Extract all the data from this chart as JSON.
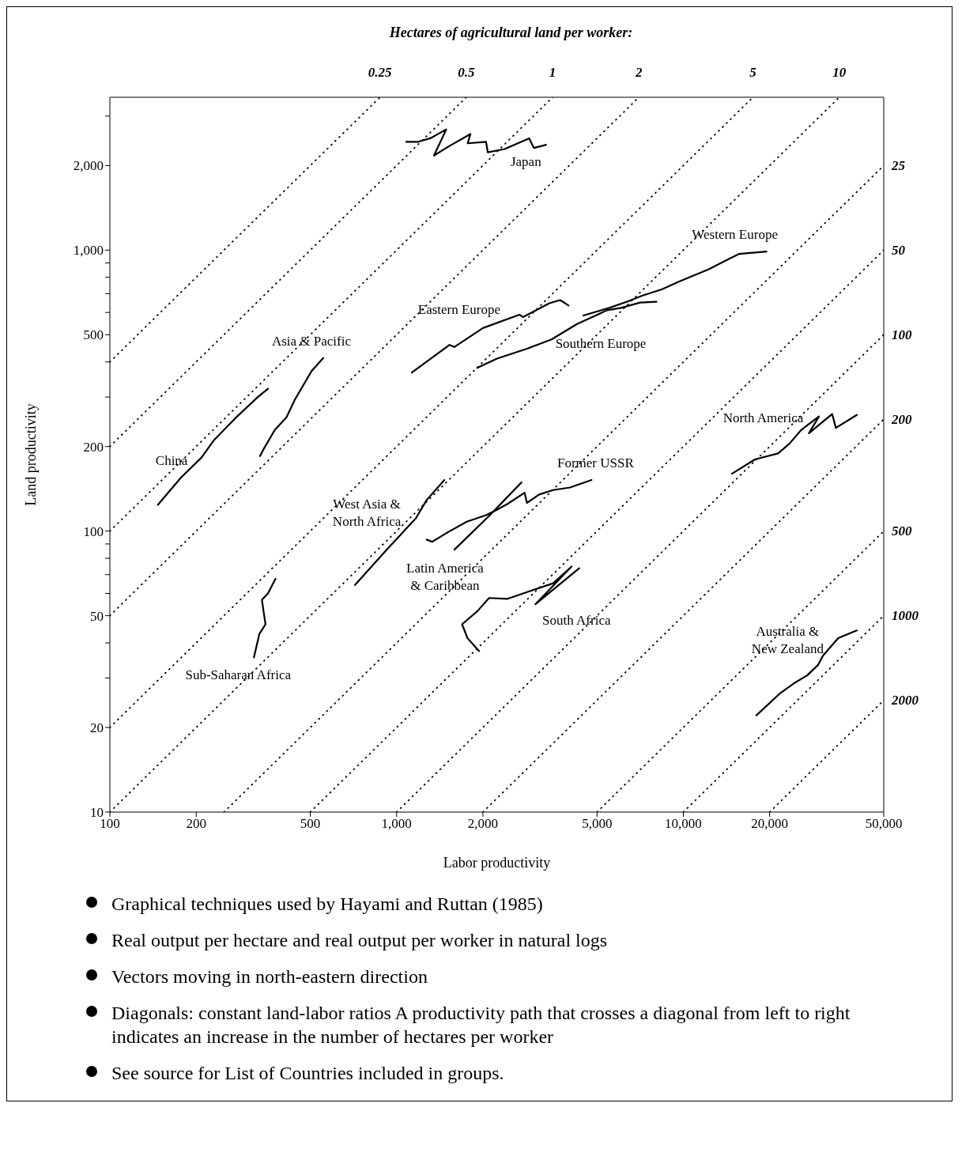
{
  "chart_data": {
    "type": "line",
    "subtitle": "Hectares of agricultural land per worker:",
    "xlabel": "Labor productivity",
    "ylabel": "Land productivity",
    "log": "xy",
    "grid": false,
    "legend": false,
    "marker": "none",
    "line_style": "solid",
    "xlim": [
      100,
      50000
    ],
    "ylim": [
      10,
      3500
    ],
    "xticks": [
      100,
      200,
      500,
      {
        "value": 1000,
        "label": "1,000"
      },
      {
        "value": 2000,
        "label": "2,000"
      },
      {
        "value": 5000,
        "label": "5,000"
      },
      {
        "value": 10000,
        "label": "10,000"
      },
      {
        "value": 20000,
        "label": "20,000"
      },
      {
        "value": 50000,
        "label": "50,000"
      }
    ],
    "yticks": [
      10,
      20,
      50,
      100,
      200,
      500,
      {
        "value": 1000,
        "label": "1,000"
      },
      {
        "value": 2000,
        "label": "2,000"
      },
      {
        "value": 30,
        "label": null
      },
      {
        "value": 40,
        "label": null
      },
      {
        "value": 60,
        "label": null
      },
      {
        "value": 70,
        "label": null
      },
      {
        "value": 80,
        "label": null
      },
      {
        "value": 90,
        "label": null
      },
      {
        "value": 300,
        "label": null
      },
      {
        "value": 400,
        "label": null
      },
      {
        "value": 600,
        "label": null
      },
      {
        "value": 700,
        "label": null
      },
      {
        "value": 800,
        "label": null
      },
      {
        "value": 900,
        "label": null
      },
      {
        "value": 3000,
        "label": null
      }
    ],
    "series": [
      {
        "name": "Japan",
        "color": "#000000",
        "x": [
          1080,
          1190,
          1310,
          1490,
          1350,
          1520,
          1810,
          1770,
          2050,
          2080,
          2380,
          2900,
          3010,
          3320
        ],
        "values": [
          2430,
          2430,
          2500,
          2690,
          2170,
          2340,
          2590,
          2400,
          2430,
          2230,
          2290,
          2500,
          2310,
          2370
        ]
      },
      {
        "name": "Eastern Europe",
        "color": "#000000",
        "x": [
          1130,
          1530,
          1590,
          2000,
          2680,
          2760,
          3410,
          3720,
          3980
        ],
        "values": [
          367,
          460,
          452,
          528,
          589,
          578,
          647,
          664,
          635
        ]
      },
      {
        "name": "Southern Europe",
        "color": "#000000",
        "x": [
          1910,
          2240,
          2850,
          3470,
          4260,
          5420,
          6060,
          7070,
          8060
        ],
        "values": [
          381,
          411,
          446,
          481,
          546,
          611,
          623,
          651,
          655
        ]
      },
      {
        "name": "Western Europe",
        "color": "#000000",
        "x": [
          4480,
          5520,
          6450,
          7210,
          8410,
          9640,
          12270,
          13970,
          15620,
          19500
        ],
        "values": [
          585,
          623,
          659,
          689,
          725,
          772,
          855,
          915,
          969,
          988
        ]
      },
      {
        "name": "China",
        "color": "#000000",
        "x": [
          147,
          177,
          209,
          231,
          278,
          328,
          356
        ],
        "values": [
          124,
          155,
          183,
          211,
          256,
          300,
          321
        ]
      },
      {
        "name": "Asia & Pacific",
        "color": "#000000",
        "x": [
          334,
          343,
          376,
          413,
          442,
          506,
          555
        ],
        "values": [
          185,
          195,
          229,
          254,
          294,
          372,
          413
        ]
      },
      {
        "name": "Sub-Saharan Africa",
        "color": "#000000",
        "x": [
          318,
          332,
          349,
          345,
          339,
          356,
          378
        ],
        "values": [
          35.5,
          43,
          46.6,
          50.3,
          57,
          60,
          67.6
        ]
      },
      {
        "name": "West Asia & North Africa",
        "color": "#000000",
        "x": [
          716,
          934,
          1167,
          1273,
          1468
        ],
        "values": [
          64.3,
          87,
          111,
          129,
          152
        ]
      },
      {
        "name": "Former USSR",
        "color": "#000000",
        "x": [
          1273,
          1330,
          1505,
          1757,
          2051,
          2236,
          2438,
          2795,
          2847,
          3143,
          3516,
          4027,
          4786
        ],
        "values": [
          93.3,
          91.6,
          98.9,
          108,
          114,
          119,
          125,
          137,
          126,
          135,
          140,
          143,
          152
        ]
      },
      {
        "name": "Latin America & Caribbean",
        "color": "#000000",
        "x": [
          1591,
          2115,
          2725
        ],
        "values": [
          85.9,
          114,
          149
        ]
      },
      {
        "name": "South Africa",
        "color": "#000000",
        "x": [
          1940,
          1767,
          1692,
          1914,
          2101,
          2438,
          2866,
          3516,
          4074,
          3048,
          4335
        ],
        "values": [
          37.4,
          41.6,
          46.6,
          51.9,
          57.8,
          57.4,
          60.8,
          65.2,
          74.8,
          54.9,
          73.8
        ]
      },
      {
        "name": "North America",
        "color": "#000000",
        "x": [
          14770,
          17780,
          21410,
          23480,
          25770,
          29720,
          27420,
          33040,
          34050,
          40270
        ],
        "values": [
          160,
          180,
          189,
          205,
          229,
          256,
          223,
          261,
          233,
          259
        ]
      },
      {
        "name": "Australia & New Zealand",
        "color": "#000000",
        "x": [
          17990,
          21680,
          24550,
          27100,
          29510,
          30690,
          34690,
          40270
        ],
        "values": [
          22.1,
          26.4,
          28.9,
          30.7,
          33.4,
          36,
          41.6,
          44.3
        ]
      },
      {
        "name": "0.25",
        "type": "line",
        "color": "#000000",
        "line_style": "dotted",
        "x": [
          100,
          875
        ],
        "values": [
          400,
          3500
        ]
      },
      {
        "name": "0.5",
        "type": "line",
        "color": "#000000",
        "line_style": "dotted",
        "x": [
          100,
          1750
        ],
        "values": [
          200,
          3500
        ]
      },
      {
        "name": "1",
        "type": "line",
        "color": "#000000",
        "line_style": "dotted",
        "x": [
          100,
          3500
        ],
        "values": [
          100,
          3500
        ]
      },
      {
        "name": "2",
        "type": "line",
        "color": "#000000",
        "line_style": "dotted",
        "x": [
          100,
          7000
        ],
        "values": [
          50,
          3500
        ]
      },
      {
        "name": "5",
        "type": "line",
        "color": "#000000",
        "line_style": "dotted",
        "x": [
          100,
          17500
        ],
        "values": [
          20,
          3500
        ]
      },
      {
        "name": "10",
        "type": "line",
        "color": "#000000",
        "line_style": "dotted",
        "x": [
          100,
          35000
        ],
        "values": [
          10,
          3500
        ]
      },
      {
        "name": "25",
        "type": "line",
        "color": "#000000",
        "line_style": "dotted",
        "x": [
          250,
          50000
        ],
        "values": [
          10,
          2000
        ]
      },
      {
        "name": "50",
        "type": "line",
        "color": "#000000",
        "line_style": "dotted",
        "x": [
          500,
          50000
        ],
        "values": [
          10,
          1000
        ]
      },
      {
        "name": "100",
        "type": "line",
        "color": "#000000",
        "line_style": "dotted",
        "x": [
          1000,
          50000
        ],
        "values": [
          10,
          500
        ]
      },
      {
        "name": "200",
        "type": "line",
        "color": "#000000",
        "line_style": "dotted",
        "x": [
          2000,
          50000
        ],
        "values": [
          10,
          250
        ]
      },
      {
        "name": "500",
        "type": "line",
        "color": "#000000",
        "line_style": "dotted",
        "x": [
          5000,
          50000
        ],
        "values": [
          10,
          100
        ]
      },
      {
        "name": "1000",
        "type": "line",
        "color": "#000000",
        "line_style": "dotted",
        "x": [
          10000,
          50000
        ],
        "values": [
          10,
          50
        ]
      },
      {
        "name": "2000",
        "type": "line",
        "color": "#000000",
        "line_style": "dotted",
        "x": [
          20000,
          50000
        ],
        "values": [
          10,
          25
        ]
      }
    ],
    "annotations": [
      "Graphical techniques used by Hayami and Ruttan (1985)",
      "Real output per hectare and real output per worker in natural logs",
      "Vectors moving in north-eastern direction",
      "Diagonals: constant land-labor ratios A productivity path that crosses a diagonal from left to right indicates an increase in the number of hectares per worker",
      "See source for List of Countries included in groups."
    ]
  }
}
